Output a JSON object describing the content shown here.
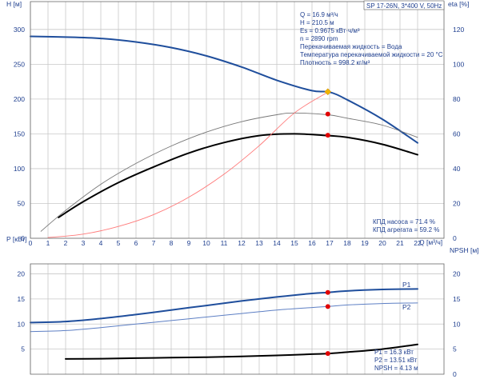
{
  "chart_data": [
    {
      "type": "line",
      "panel": "upper",
      "title": "SP 17-26N, 3*400 V, 50Hz",
      "xlabel": "Q [м³/ч]",
      "ylabel_left": "H [м]",
      "ylabel_right": "eta [%]",
      "xlim": [
        0,
        23.5
      ],
      "ylim_left": [
        0,
        340
      ],
      "ylim_right": [
        0,
        136
      ],
      "x_ticks": [
        0,
        1,
        2,
        3,
        4,
        5,
        6,
        7,
        8,
        9,
        10,
        11,
        12,
        13,
        14,
        15,
        16,
        17,
        18,
        19,
        20,
        21,
        22
      ],
      "y_ticks_left": [
        0,
        50,
        100,
        150,
        200,
        250,
        300
      ],
      "y_ticks_right": [
        0,
        20,
        40,
        60,
        80,
        100,
        120
      ],
      "grid": true,
      "info_lines": [
        "Q = 16.9 м³/ч",
        "H = 210.5 м",
        "Es = 0.9675 кВт·ч/м³",
        "n = 2890 rpm",
        "Перекачиваемая жидкость = Вода",
        "Температура перекачиваемой жидкости = 20 °C",
        "Плотность = 998.2 кг/м³"
      ],
      "efficiency_labels": [
        "КПД насоса = 71.4 %",
        "КПД агрегата = 59.2 %"
      ],
      "series": [
        {
          "axis": "left",
          "color": "#1f4e9c",
          "width": 2,
          "x": [
            0,
            2,
            4,
            6,
            8,
            10,
            12,
            14,
            16,
            17,
            18,
            20,
            22
          ],
          "values": [
            290,
            289,
            287,
            282,
            274,
            262,
            246,
            227,
            212,
            210,
            199,
            171,
            137
          ]
        },
        {
          "axis": "right",
          "color": "#000000",
          "width": 2,
          "x": [
            1.6,
            3,
            5,
            7,
            9,
            11,
            13,
            15,
            16.9,
            18,
            20,
            22
          ],
          "values": [
            12,
            21,
            32,
            41,
            49,
            55,
            59,
            60,
            59,
            58,
            54,
            48
          ]
        },
        {
          "axis": "right",
          "color": "#777777",
          "width": 0.9,
          "x": [
            0.6,
            2,
            4,
            6,
            8,
            10,
            12,
            14,
            15,
            16.9,
            18,
            20,
            22
          ],
          "values": [
            4,
            16,
            31,
            43,
            53,
            61,
            67,
            71,
            72,
            71,
            69,
            65,
            58
          ]
        },
        {
          "axis": "left",
          "color": "#ff7a7a",
          "width": 0.9,
          "x": [
            1,
            3,
            5,
            7,
            9,
            11,
            13,
            15,
            16.9
          ],
          "values": [
            1,
            6,
            17,
            34,
            59,
            92,
            133,
            180,
            210
          ]
        }
      ],
      "markers": [
        {
          "axis": "left",
          "x": 16.9,
          "y": 210.5,
          "color": "#f0b400",
          "shape": "diamond"
        },
        {
          "axis": "right",
          "x": 16.9,
          "y": 71.4,
          "color": "#e00000"
        },
        {
          "axis": "right",
          "x": 16.9,
          "y": 59.2,
          "color": "#e00000"
        }
      ]
    },
    {
      "type": "line",
      "panel": "lower",
      "ylabel_left": "P [кВт]",
      "ylabel_right": "NPSH [м]",
      "xlim": [
        0,
        23.5
      ],
      "ylim_left": [
        0,
        22
      ],
      "ylim_right": [
        0,
        22
      ],
      "y_ticks_left": [
        5,
        10,
        15,
        20
      ],
      "y_ticks_right": [
        0,
        5,
        10,
        15,
        20
      ],
      "grid": true,
      "bottom_labels": [
        "P1 = 16.3 кВт",
        "P2 = 13.51 кВт",
        "NPSH = 4.13 м"
      ],
      "series": [
        {
          "name": "P1",
          "axis": "left",
          "color": "#1f4e9c",
          "width": 2,
          "x": [
            0,
            2,
            4,
            6,
            8,
            10,
            12,
            14,
            16,
            16.9,
            18,
            20,
            22
          ],
          "values": [
            10.3,
            10.5,
            11.1,
            11.9,
            12.8,
            13.7,
            14.6,
            15.4,
            16.1,
            16.3,
            16.6,
            16.9,
            17.0
          ]
        },
        {
          "name": "P2",
          "axis": "left",
          "color": "#5d7fc4",
          "width": 1,
          "x": [
            0,
            2,
            4,
            6,
            8,
            10,
            12,
            14,
            16,
            16.9,
            18,
            20,
            22
          ],
          "values": [
            8.5,
            8.7,
            9.3,
            10.0,
            10.7,
            11.4,
            12.1,
            12.8,
            13.3,
            13.5,
            13.8,
            14.1,
            14.2
          ]
        },
        {
          "name": "NPSH",
          "axis": "right",
          "color": "#000000",
          "width": 2,
          "x": [
            2,
            4,
            6,
            8,
            10,
            12,
            14,
            16,
            17,
            18,
            20,
            22
          ],
          "values": [
            3.05,
            3.1,
            3.2,
            3.3,
            3.4,
            3.55,
            3.75,
            4.0,
            4.13,
            4.4,
            5.0,
            5.95
          ]
        }
      ],
      "markers": [
        {
          "axis": "left",
          "x": 16.9,
          "y": 16.3,
          "color": "#e00000"
        },
        {
          "axis": "left",
          "x": 16.9,
          "y": 13.5,
          "color": "#e00000"
        },
        {
          "axis": "right",
          "x": 16.9,
          "y": 4.13,
          "color": "#e00000"
        }
      ]
    }
  ]
}
